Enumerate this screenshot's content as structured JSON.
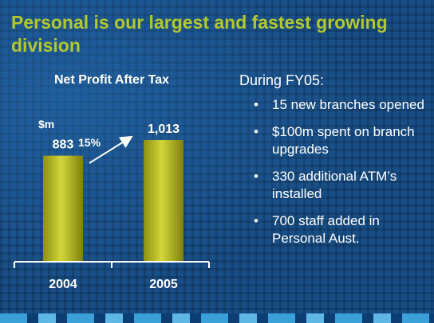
{
  "slide": {
    "title": "Personal is our largest and fastest growing division"
  },
  "chart_data": {
    "type": "bar",
    "title": "Net Profit After Tax",
    "unit_label": "$m",
    "categories": [
      "2004",
      "2005"
    ],
    "values": [
      883,
      1013
    ],
    "value_labels": [
      "883",
      "1,013"
    ],
    "growth_label": "15%",
    "bar_color": "#b5b918"
  },
  "bullets": {
    "intro": "During FY05:",
    "items": [
      "15 new branches opened",
      "$100m spent on branch upgrades",
      "330 additional ATM’s installed",
      "700 staff added in Personal Aust."
    ]
  }
}
